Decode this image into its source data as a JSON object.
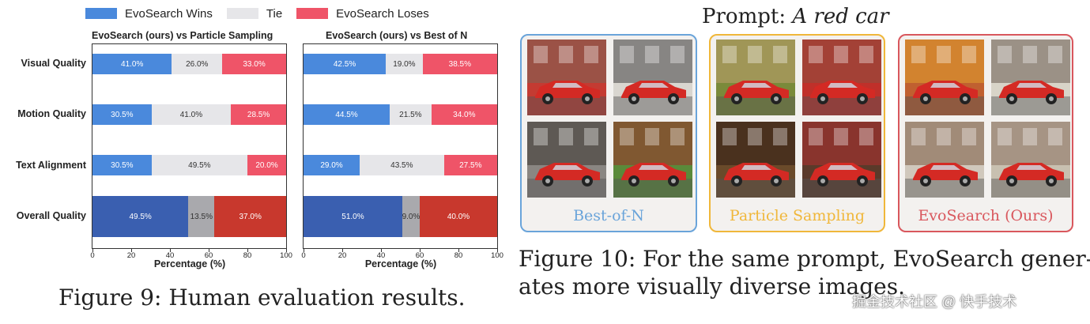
{
  "legend": {
    "wins": {
      "label": "EvoSearch Wins",
      "color": "#4a89dc"
    },
    "tie": {
      "label": "Tie",
      "color": "#e6e6e9"
    },
    "loses": {
      "label": "EvoSearch Loses",
      "color": "#ef5468"
    }
  },
  "chart_data": [
    {
      "type": "bar",
      "title": "EvoSearch (ours) vs Particle Sampling",
      "xlabel": "Percentage (%)",
      "xlim": [
        0,
        100
      ],
      "xticks": [
        "0",
        "20",
        "40",
        "60",
        "80",
        "100"
      ],
      "categories": [
        "Visual Quality",
        "Motion Quality",
        "Text Alignment",
        "Overall Quality"
      ],
      "series": [
        {
          "name": "EvoSearch Wins",
          "values": [
            41.0,
            30.5,
            30.5,
            49.5
          ],
          "labels": [
            "41.0%",
            "30.5%",
            "30.5%",
            "49.5%"
          ]
        },
        {
          "name": "Tie",
          "values": [
            26.0,
            41.0,
            49.5,
            13.5
          ],
          "labels": [
            "26.0%",
            "41.0%",
            "49.5%",
            "13.5%"
          ]
        },
        {
          "name": "EvoSearch Loses",
          "values": [
            33.0,
            28.5,
            20.0,
            37.0
          ],
          "labels": [
            "33.0%",
            "28.5%",
            "20.0%",
            "37.0%"
          ]
        }
      ]
    },
    {
      "type": "bar",
      "title": "EvoSearch (ours) vs Best of N",
      "xlabel": "Percentage (%)",
      "xlim": [
        0,
        100
      ],
      "xticks": [
        "0",
        "20",
        "40",
        "60",
        "80",
        "100"
      ],
      "categories": [
        "Visual Quality",
        "Motion Quality",
        "Text Alignment",
        "Overall Quality"
      ],
      "series": [
        {
          "name": "EvoSearch Wins",
          "values": [
            42.5,
            44.5,
            29.0,
            51.0
          ],
          "labels": [
            "42.5%",
            "44.5%",
            "29.0%",
            "51.0%"
          ]
        },
        {
          "name": "Tie",
          "values": [
            19.0,
            21.5,
            43.5,
            9.0
          ],
          "labels": [
            "19.0%",
            "21.5%",
            "43.5%",
            "9.0%"
          ]
        },
        {
          "name": "EvoSearch Loses",
          "values": [
            38.5,
            34.0,
            27.5,
            40.0
          ],
          "labels": [
            "38.5%",
            "34.0%",
            "27.5%",
            "40.0%"
          ]
        }
      ]
    }
  ],
  "overall_colors": {
    "wins": "#3a5fb0",
    "tie": "#a9a9ad",
    "loses": "#c8382d"
  },
  "figure9_caption": "Figure 9: Human evaluation results.",
  "prompt": {
    "prefix": "Prompt: ",
    "text": "A red car"
  },
  "groups": [
    {
      "label": "Best-of-N",
      "color": "#6aa4da"
    },
    {
      "label": "Particle Sampling",
      "color": "#f0b73a"
    },
    {
      "label": "EvoSearch (Ours)",
      "color": "#d9575d"
    }
  ],
  "figure10_caption": {
    "line1": "Figure 10: For the same prompt, EvoSearch gener-",
    "line2": "ates more visually diverse images."
  },
  "watermark": "掘金技术社区 @ 快手技术"
}
